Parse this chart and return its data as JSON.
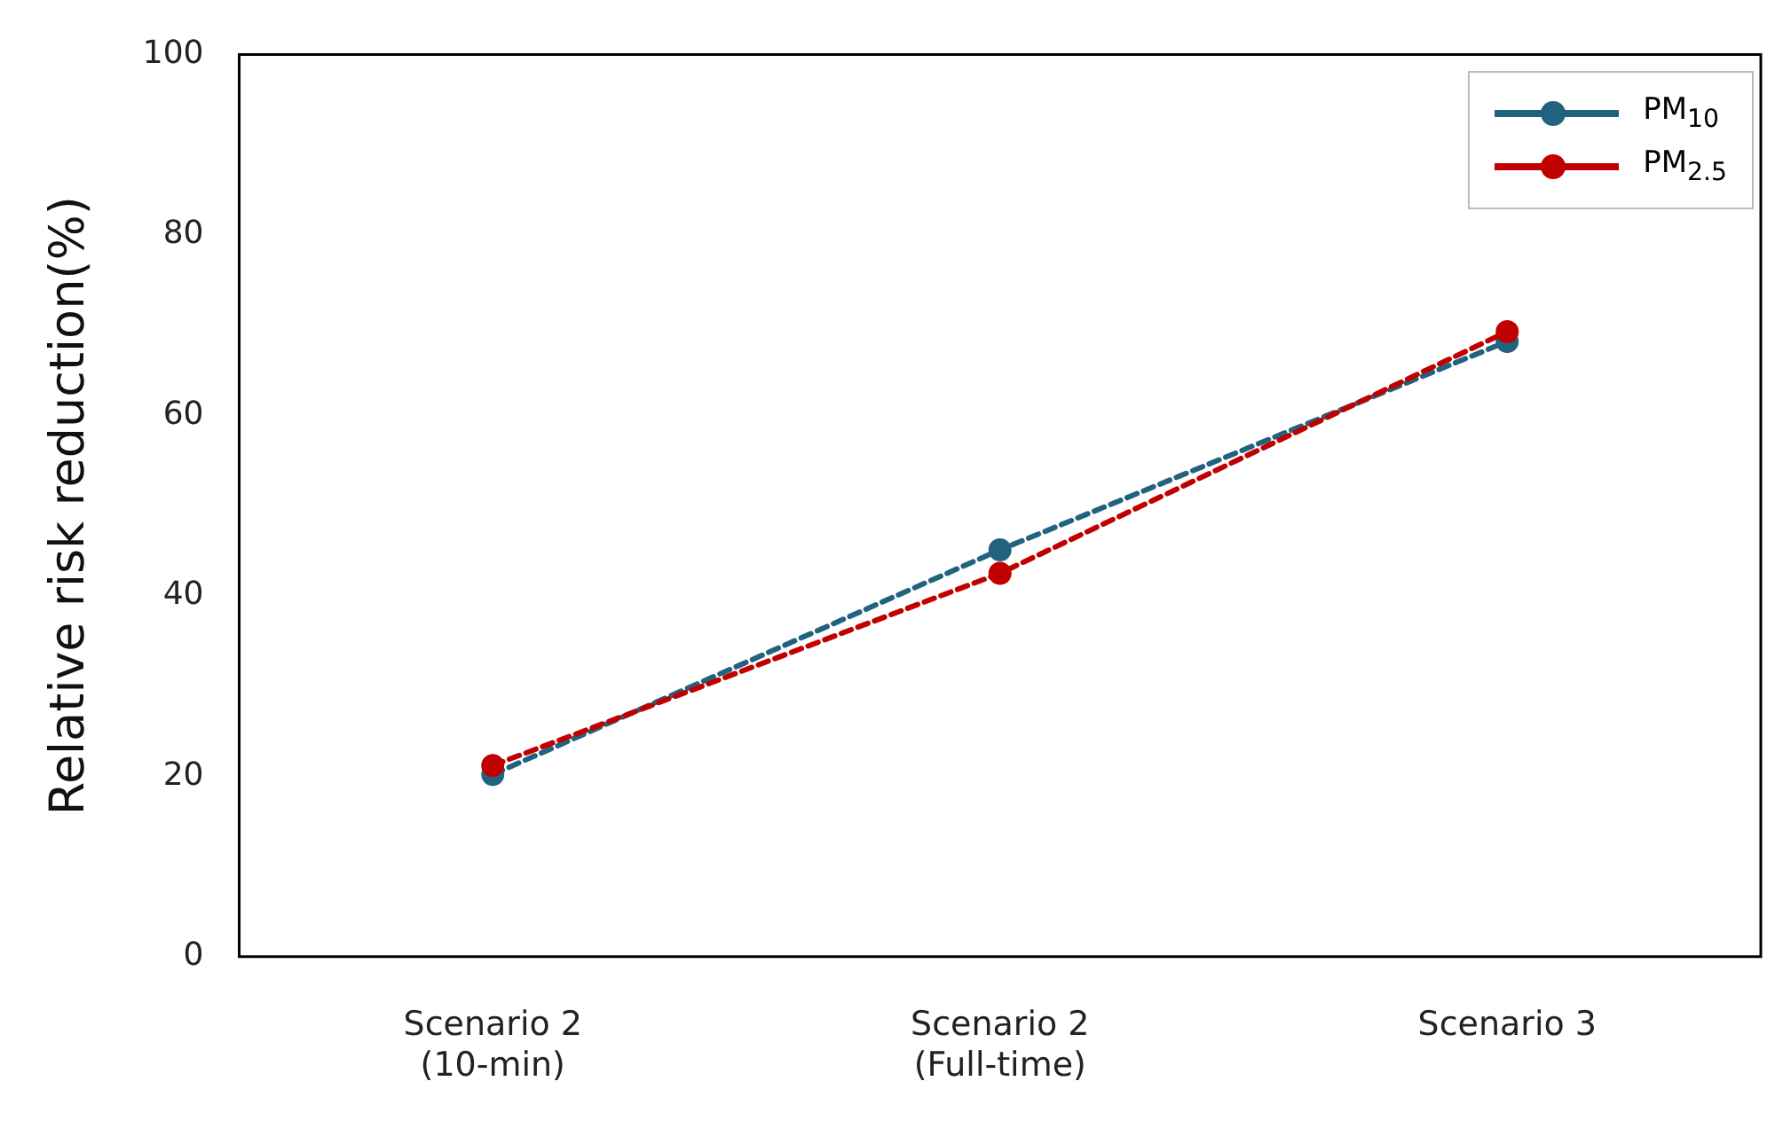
{
  "chart_data": {
    "type": "line",
    "ylabel": "Relative risk reduction(%)",
    "categories": [
      "Scenario 2\n(10-min)",
      "Scenario 2\n(Full-time)",
      "Scenario 3"
    ],
    "series": [
      {
        "name": "PM$_{10}$",
        "color": "#21637e",
        "values": [
          20.2,
          45.1,
          68.2
        ]
      },
      {
        "name": "PM$_{2.5}$",
        "color": "#c00000",
        "values": [
          21.2,
          42.5,
          69.3
        ]
      }
    ],
    "ylim": [
      0,
      100
    ],
    "yticks": [
      0,
      20,
      40,
      60,
      80,
      100
    ],
    "grid": false,
    "legend": "top right",
    "marker": "circle",
    "line_style": "dashed"
  }
}
